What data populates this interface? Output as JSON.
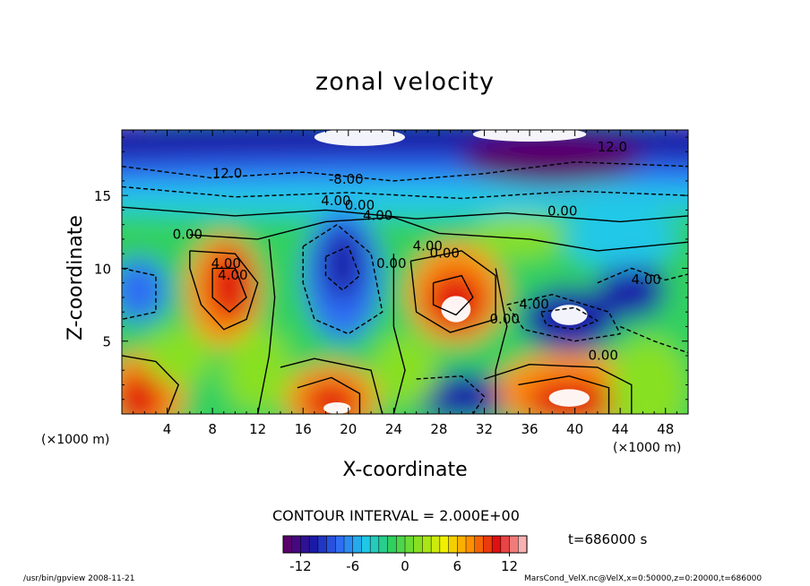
{
  "chart_data": {
    "type": "heatmap",
    "title": "zonal velocity",
    "xlabel": "X-coordinate",
    "ylabel": "Z-coordinate",
    "x_unit_label": "(×1000 m)",
    "y_unit_label": "(×1000 m)",
    "xlim": [
      0,
      50
    ],
    "ylim": [
      0,
      19.5
    ],
    "x_ticks": [
      4,
      8,
      12,
      16,
      20,
      24,
      28,
      32,
      36,
      40,
      44,
      48
    ],
    "y_ticks": [
      5,
      10,
      15
    ],
    "colorbar": {
      "range": [
        -14,
        14
      ],
      "ticks": [
        -12,
        -6,
        0,
        6,
        12
      ],
      "colors": [
        "#5a006a",
        "#1a1aa8",
        "#2f6df5",
        "#20c8e8",
        "#30d060",
        "#88e020",
        "#f0f000",
        "#ff9000",
        "#e01010",
        "#f8b0b0"
      ]
    },
    "contour_labels": [
      {
        "x": 9.3,
        "y": 16.5,
        "text": "12.0"
      },
      {
        "x": 19.8,
        "y": 16.1,
        "text": "-8.00"
      },
      {
        "x": 18.9,
        "y": 14.6,
        "text": "4.00"
      },
      {
        "x": 21.0,
        "y": 14.3,
        "text": "0.00"
      },
      {
        "x": 22.6,
        "y": 13.6,
        "text": "4.00"
      },
      {
        "x": 5.8,
        "y": 12.3,
        "text": "0.00"
      },
      {
        "x": 9.2,
        "y": 10.3,
        "text": "4.00"
      },
      {
        "x": 9.8,
        "y": 9.5,
        "text": "4.00"
      },
      {
        "x": 27.0,
        "y": 11.5,
        "text": "4.00"
      },
      {
        "x": 28.5,
        "y": 11.0,
        "text": "0.00"
      },
      {
        "x": 23.8,
        "y": 10.3,
        "text": "0.00"
      },
      {
        "x": 38.9,
        "y": 13.9,
        "text": "0.00"
      },
      {
        "x": 43.3,
        "y": 18.3,
        "text": "12.0"
      },
      {
        "x": 33.8,
        "y": 6.5,
        "text": "0.00"
      },
      {
        "x": 36.4,
        "y": 7.5,
        "text": "4.00"
      },
      {
        "x": 42.5,
        "y": 4.0,
        "text": "0.00"
      },
      {
        "x": 46.3,
        "y": 9.2,
        "text": "4.00"
      }
    ]
  },
  "contour_interval": "CONTOUR INTERVAL = 2.000E+00",
  "time_label": "t=686000 s",
  "footer_left": "/usr/bin/gpview   2008-11-21",
  "footer_right": "MarsCond_VelX.nc@VelX,x=0:50000,z=0:20000,t=686000"
}
